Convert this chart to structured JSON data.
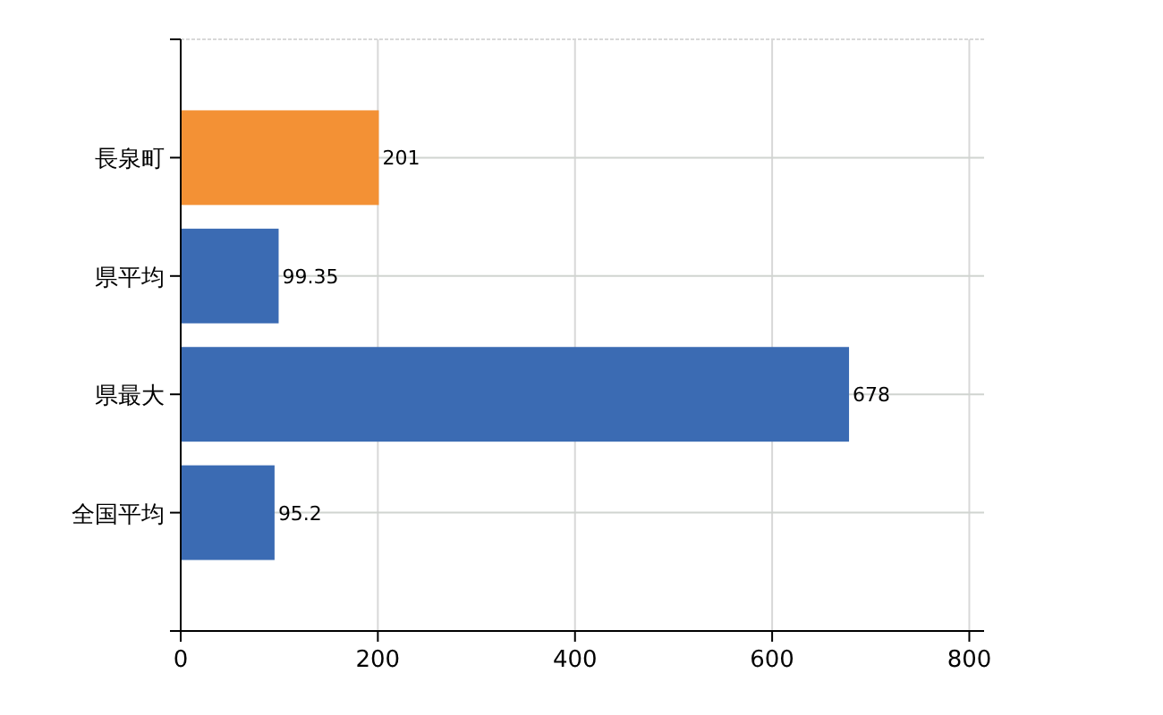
{
  "chart_data": {
    "type": "bar",
    "orientation": "horizontal",
    "categories": [
      "長泉町",
      "県平均",
      "県最大",
      "全国平均"
    ],
    "values": [
      201,
      99.35,
      678,
      95.2
    ],
    "colors": [
      "#f39135",
      "#3b6bb3",
      "#3b6bb3",
      "#3b6bb3"
    ],
    "xlim": [
      0,
      815
    ],
    "xticks": [
      0,
      200,
      400,
      600,
      800
    ],
    "grid": true,
    "data_labels": true
  }
}
